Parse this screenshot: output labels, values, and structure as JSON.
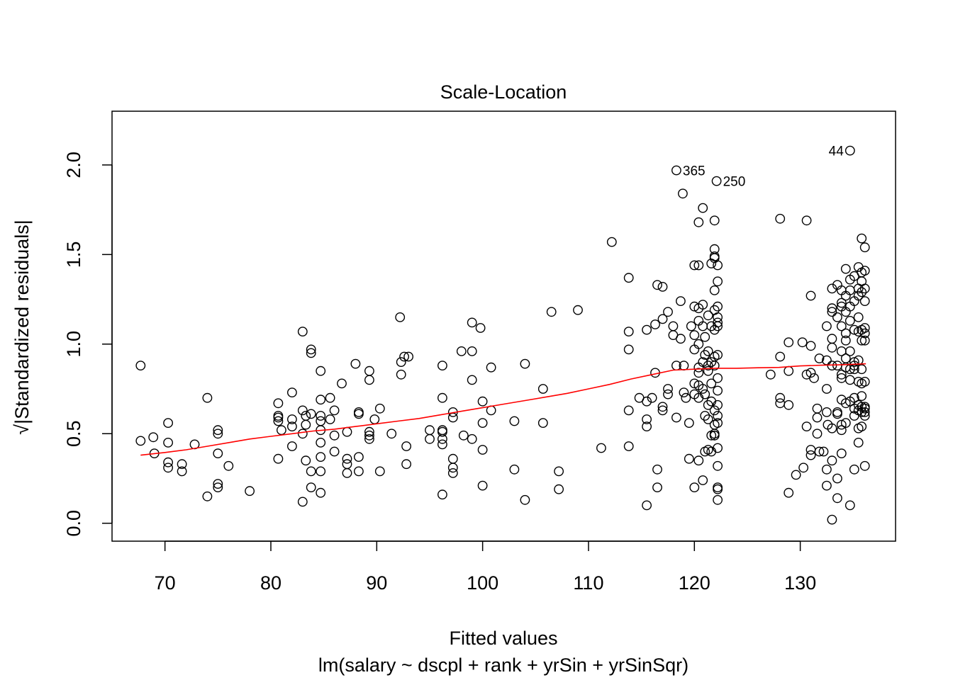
{
  "chart_data": {
    "type": "scatter",
    "title": "Scale-Location",
    "xlabel": "Fitted values",
    "subtitle": "lm(salary ~ dscpl + rank + yrSin + yrSinSqr)",
    "ylabel": "√|Standardized residuals|",
    "xlim": [
      65,
      139
    ],
    "ylim": [
      -0.1,
      2.3
    ],
    "xticks": [
      70,
      80,
      90,
      100,
      110,
      120,
      130
    ],
    "yticks": [
      0.0,
      0.5,
      1.0,
      1.5,
      2.0
    ],
    "ytick_labels": [
      "0.0",
      "0.5",
      "1.0",
      "1.5",
      "2.0"
    ],
    "grid": false,
    "point_color": "#000000",
    "smooth_color": "#ff0000",
    "points": [
      [
        67.7,
        0.88
      ],
      [
        67.7,
        0.46
      ],
      [
        68.9,
        0.48
      ],
      [
        69.0,
        0.39
      ],
      [
        70.3,
        0.56
      ],
      [
        70.3,
        0.45
      ],
      [
        70.3,
        0.34
      ],
      [
        70.3,
        0.31
      ],
      [
        71.6,
        0.33
      ],
      [
        71.6,
        0.29
      ],
      [
        72.8,
        0.44
      ],
      [
        74.0,
        0.7
      ],
      [
        74.0,
        0.15
      ],
      [
        75.0,
        0.52
      ],
      [
        75.0,
        0.5
      ],
      [
        75.0,
        0.39
      ],
      [
        75.0,
        0.22
      ],
      [
        75.0,
        0.2
      ],
      [
        76.0,
        0.32
      ],
      [
        78.0,
        0.18
      ],
      [
        80.7,
        0.67
      ],
      [
        80.7,
        0.6
      ],
      [
        80.7,
        0.59
      ],
      [
        80.7,
        0.57
      ],
      [
        80.7,
        0.36
      ],
      [
        81.0,
        0.52
      ],
      [
        82.0,
        0.73
      ],
      [
        82.0,
        0.58
      ],
      [
        82.0,
        0.54
      ],
      [
        82.0,
        0.43
      ],
      [
        83.0,
        1.07
      ],
      [
        83.0,
        0.63
      ],
      [
        83.0,
        0.5
      ],
      [
        83.0,
        0.12
      ],
      [
        83.3,
        0.6
      ],
      [
        83.3,
        0.35
      ],
      [
        83.3,
        0.55
      ],
      [
        83.8,
        0.97
      ],
      [
        83.8,
        0.95
      ],
      [
        83.8,
        0.61
      ],
      [
        83.8,
        0.29
      ],
      [
        83.8,
        0.2
      ],
      [
        84.7,
        0.85
      ],
      [
        84.7,
        0.69
      ],
      [
        84.7,
        0.6
      ],
      [
        84.7,
        0.57
      ],
      [
        84.7,
        0.52
      ],
      [
        84.7,
        0.45
      ],
      [
        84.7,
        0.37
      ],
      [
        84.7,
        0.29
      ],
      [
        84.7,
        0.17
      ],
      [
        85.6,
        0.7
      ],
      [
        85.6,
        0.58
      ],
      [
        86.0,
        0.63
      ],
      [
        86.0,
        0.49
      ],
      [
        86.0,
        0.4
      ],
      [
        86.7,
        0.78
      ],
      [
        87.2,
        0.51
      ],
      [
        87.2,
        0.36
      ],
      [
        87.2,
        0.33
      ],
      [
        87.2,
        0.28
      ],
      [
        88.0,
        0.89
      ],
      [
        88.3,
        0.61
      ],
      [
        88.3,
        0.62
      ],
      [
        88.3,
        0.37
      ],
      [
        88.3,
        0.29
      ],
      [
        89.3,
        0.85
      ],
      [
        89.3,
        0.8
      ],
      [
        89.3,
        0.51
      ],
      [
        89.3,
        0.49
      ],
      [
        89.3,
        0.47
      ],
      [
        89.8,
        0.58
      ],
      [
        90.3,
        0.64
      ],
      [
        90.3,
        0.29
      ],
      [
        91.4,
        0.5
      ],
      [
        92.2,
        1.15
      ],
      [
        92.3,
        0.9
      ],
      [
        92.3,
        0.83
      ],
      [
        92.6,
        0.93
      ],
      [
        92.8,
        0.43
      ],
      [
        92.8,
        0.33
      ],
      [
        93.0,
        0.93
      ],
      [
        95.0,
        0.52
      ],
      [
        95.0,
        0.47
      ],
      [
        96.2,
        0.88
      ],
      [
        96.2,
        0.7
      ],
      [
        96.2,
        0.52
      ],
      [
        96.2,
        0.51
      ],
      [
        96.2,
        0.47
      ],
      [
        96.2,
        0.44
      ],
      [
        96.2,
        0.16
      ],
      [
        97.2,
        0.62
      ],
      [
        97.2,
        0.59
      ],
      [
        97.2,
        0.36
      ],
      [
        97.2,
        0.31
      ],
      [
        97.2,
        0.28
      ],
      [
        98.0,
        0.96
      ],
      [
        98.2,
        0.49
      ],
      [
        99.0,
        1.12
      ],
      [
        99.0,
        0.96
      ],
      [
        99.0,
        0.8
      ],
      [
        99.0,
        0.47
      ],
      [
        99.8,
        1.09
      ],
      [
        100.0,
        0.68
      ],
      [
        100.0,
        0.56
      ],
      [
        100.0,
        0.41
      ],
      [
        100.0,
        0.21
      ],
      [
        100.8,
        0.87
      ],
      [
        100.8,
        0.63
      ],
      [
        103.0,
        0.57
      ],
      [
        103.0,
        0.3
      ],
      [
        104.0,
        0.89
      ],
      [
        104.0,
        0.13
      ],
      [
        105.7,
        0.75
      ],
      [
        105.7,
        0.56
      ],
      [
        106.5,
        1.18
      ],
      [
        107.2,
        0.29
      ],
      [
        107.2,
        0.19
      ],
      [
        109.0,
        1.19
      ],
      [
        111.2,
        0.42
      ],
      [
        112.2,
        1.57
      ],
      [
        113.8,
        1.37
      ],
      [
        113.8,
        1.07
      ],
      [
        113.8,
        0.97
      ],
      [
        113.8,
        0.63
      ],
      [
        113.8,
        0.43
      ],
      [
        114.8,
        0.7
      ],
      [
        115.5,
        1.08
      ],
      [
        115.5,
        0.68
      ],
      [
        115.5,
        0.58
      ],
      [
        115.5,
        0.54
      ],
      [
        115.5,
        0.1
      ],
      [
        116.0,
        0.7
      ],
      [
        116.3,
        1.11
      ],
      [
        116.3,
        0.84
      ],
      [
        116.5,
        0.3
      ],
      [
        116.5,
        0.2
      ],
      [
        116.5,
        1.33
      ],
      [
        117.0,
        1.32
      ],
      [
        117.0,
        1.14
      ],
      [
        117.0,
        0.65
      ],
      [
        117.0,
        0.63
      ],
      [
        117.5,
        1.18
      ],
      [
        117.5,
        0.75
      ],
      [
        117.5,
        0.72
      ],
      [
        118.0,
        1.1
      ],
      [
        118.0,
        1.05
      ],
      [
        118.3,
        0.88
      ],
      [
        118.3,
        0.59
      ],
      [
        118.3,
        1.97
      ],
      [
        118.7,
        1.24
      ],
      [
        118.7,
        1.03
      ],
      [
        118.9,
        1.84
      ],
      [
        119.0,
        0.88
      ],
      [
        119.0,
        0.73
      ],
      [
        119.2,
        0.7
      ],
      [
        119.5,
        0.56
      ],
      [
        119.5,
        0.36
      ],
      [
        119.7,
        1.1
      ],
      [
        120.0,
        1.21
      ],
      [
        120.0,
        1.05
      ],
      [
        120.0,
        0.97
      ],
      [
        120.0,
        0.78
      ],
      [
        120.0,
        0.72
      ],
      [
        120.0,
        0.2
      ],
      [
        120.0,
        1.44
      ],
      [
        120.4,
        1.68
      ],
      [
        120.4,
        1.44
      ],
      [
        120.4,
        1.2
      ],
      [
        120.4,
        1.13
      ],
      [
        120.4,
        1.0
      ],
      [
        120.4,
        0.87
      ],
      [
        120.4,
        0.84
      ],
      [
        120.4,
        0.77
      ],
      [
        120.4,
        0.7
      ],
      [
        120.4,
        0.35
      ],
      [
        120.8,
        1.76
      ],
      [
        120.8,
        1.22
      ],
      [
        120.8,
        1.1
      ],
      [
        120.8,
        0.9
      ],
      [
        120.8,
        0.75
      ],
      [
        120.8,
        0.24
      ],
      [
        121.0,
        1.04
      ],
      [
        121.0,
        0.94
      ],
      [
        121.0,
        0.72
      ],
      [
        121.0,
        0.6
      ],
      [
        121.0,
        0.4
      ],
      [
        121.3,
        1.16
      ],
      [
        121.3,
        0.96
      ],
      [
        121.3,
        0.88
      ],
      [
        121.3,
        0.85
      ],
      [
        121.3,
        0.66
      ],
      [
        121.3,
        0.58
      ],
      [
        121.3,
        0.41
      ],
      [
        121.6,
        1.45
      ],
      [
        121.6,
        1.1
      ],
      [
        121.6,
        0.9
      ],
      [
        121.6,
        0.78
      ],
      [
        121.6,
        0.68
      ],
      [
        121.6,
        0.49
      ],
      [
        121.6,
        0.4
      ],
      [
        121.9,
        1.53
      ],
      [
        121.9,
        1.49
      ],
      [
        121.9,
        1.48
      ],
      [
        121.9,
        1.3
      ],
      [
        121.9,
        1.19
      ],
      [
        121.9,
        1.08
      ],
      [
        121.9,
        0.93
      ],
      [
        121.9,
        0.88
      ],
      [
        121.9,
        0.63
      ],
      [
        121.9,
        0.55
      ],
      [
        121.9,
        0.5
      ],
      [
        121.9,
        0.49
      ],
      [
        121.9,
        0.49
      ],
      [
        121.9,
        1.69
      ],
      [
        122.1,
        1.91
      ],
      [
        122.2,
        1.44
      ],
      [
        122.2,
        1.35
      ],
      [
        122.2,
        1.21
      ],
      [
        122.2,
        1.15
      ],
      [
        122.2,
        1.12
      ],
      [
        122.2,
        1.1
      ],
      [
        122.2,
        0.94
      ],
      [
        122.2,
        0.81
      ],
      [
        122.2,
        0.74
      ],
      [
        122.2,
        0.66
      ],
      [
        122.2,
        0.6
      ],
      [
        122.2,
        0.56
      ],
      [
        122.2,
        0.42
      ],
      [
        122.2,
        0.32
      ],
      [
        122.2,
        0.2
      ],
      [
        122.2,
        0.19
      ],
      [
        122.2,
        0.13
      ],
      [
        127.2,
        0.83
      ],
      [
        128.1,
        1.7
      ],
      [
        128.1,
        0.93
      ],
      [
        128.1,
        0.7
      ],
      [
        128.1,
        0.67
      ],
      [
        128.9,
        1.01
      ],
      [
        128.9,
        0.85
      ],
      [
        128.9,
        0.66
      ],
      [
        128.9,
        0.17
      ],
      [
        129.6,
        0.27
      ],
      [
        130.2,
        1.01
      ],
      [
        130.3,
        0.31
      ],
      [
        130.6,
        1.69
      ],
      [
        130.6,
        0.83
      ],
      [
        130.6,
        0.54
      ],
      [
        131.0,
        1.27
      ],
      [
        131.0,
        0.99
      ],
      [
        131.0,
        0.84
      ],
      [
        131.0,
        0.41
      ],
      [
        131.0,
        0.38
      ],
      [
        131.3,
        0.81
      ],
      [
        131.6,
        0.64
      ],
      [
        131.6,
        0.59
      ],
      [
        131.6,
        0.5
      ],
      [
        131.8,
        0.92
      ],
      [
        131.8,
        0.4
      ],
      [
        132.2,
        0.4
      ],
      [
        132.5,
        1.1
      ],
      [
        132.5,
        0.91
      ],
      [
        132.5,
        0.75
      ],
      [
        132.5,
        0.62
      ],
      [
        132.5,
        0.3
      ],
      [
        132.5,
        0.21
      ],
      [
        132.6,
        0.55
      ],
      [
        133.0,
        1.31
      ],
      [
        133.0,
        1.2
      ],
      [
        133.0,
        1.18
      ],
      [
        133.0,
        1.03
      ],
      [
        133.0,
        0.98
      ],
      [
        133.0,
        0.88
      ],
      [
        133.0,
        0.53
      ],
      [
        133.0,
        0.35
      ],
      [
        133.0,
        0.02
      ],
      [
        133.5,
        1.33
      ],
      [
        133.5,
        1.15
      ],
      [
        133.5,
        0.88
      ],
      [
        133.5,
        0.62
      ],
      [
        133.5,
        0.61
      ],
      [
        133.5,
        0.25
      ],
      [
        133.5,
        0.14
      ],
      [
        133.9,
        1.3
      ],
      [
        133.9,
        1.23
      ],
      [
        133.9,
        1.21
      ],
      [
        133.9,
        1.1
      ],
      [
        133.9,
        0.96
      ],
      [
        133.9,
        0.83
      ],
      [
        133.9,
        0.81
      ],
      [
        133.9,
        0.69
      ],
      [
        133.9,
        0.55
      ],
      [
        133.9,
        0.52
      ],
      [
        133.9,
        0.39
      ],
      [
        134.3,
        1.42
      ],
      [
        134.3,
        1.27
      ],
      [
        134.3,
        1.18
      ],
      [
        134.3,
        1.06
      ],
      [
        134.3,
        1.02
      ],
      [
        134.3,
        0.92
      ],
      [
        134.3,
        0.87
      ],
      [
        134.3,
        0.67
      ],
      [
        134.3,
        0.56
      ],
      [
        134.7,
        1.36
      ],
      [
        134.7,
        1.3
      ],
      [
        134.7,
        1.21
      ],
      [
        134.7,
        1.13
      ],
      [
        134.7,
        0.96
      ],
      [
        134.7,
        0.86
      ],
      [
        134.7,
        0.8
      ],
      [
        134.7,
        0.68
      ],
      [
        134.7,
        0.1
      ],
      [
        134.7,
        2.08
      ],
      [
        135.1,
        1.38
      ],
      [
        135.1,
        1.24
      ],
      [
        135.1,
        1.08
      ],
      [
        135.1,
        0.9
      ],
      [
        135.1,
        0.88
      ],
      [
        135.1,
        0.86
      ],
      [
        135.1,
        0.7
      ],
      [
        135.1,
        0.64
      ],
      [
        135.1,
        0.6
      ],
      [
        135.1,
        0.3
      ],
      [
        135.5,
        1.43
      ],
      [
        135.5,
        1.31
      ],
      [
        135.5,
        1.27
      ],
      [
        135.5,
        1.15
      ],
      [
        135.5,
        1.07
      ],
      [
        135.5,
        0.91
      ],
      [
        135.5,
        0.79
      ],
      [
        135.5,
        0.66
      ],
      [
        135.5,
        0.63
      ],
      [
        135.5,
        0.53
      ],
      [
        135.5,
        0.45
      ],
      [
        135.8,
        1.59
      ],
      [
        135.8,
        1.4
      ],
      [
        135.8,
        1.35
      ],
      [
        135.8,
        1.29
      ],
      [
        135.8,
        1.08
      ],
      [
        135.8,
        1.02
      ],
      [
        135.8,
        0.86
      ],
      [
        135.8,
        0.78
      ],
      [
        135.8,
        0.71
      ],
      [
        135.8,
        0.65
      ],
      [
        135.8,
        0.62
      ],
      [
        135.8,
        0.54
      ],
      [
        136.1,
        1.54
      ],
      [
        136.1,
        1.41
      ],
      [
        136.1,
        1.31
      ],
      [
        136.1,
        1.24
      ],
      [
        136.1,
        1.09
      ],
      [
        136.1,
        1.06
      ],
      [
        136.1,
        1.02
      ],
      [
        136.1,
        0.79
      ],
      [
        136.1,
        0.65
      ],
      [
        136.1,
        0.64
      ],
      [
        136.1,
        0.62
      ],
      [
        136.1,
        0.6
      ],
      [
        136.1,
        0.32
      ]
    ],
    "smooth_line": [
      [
        67.7,
        0.38
      ],
      [
        70,
        0.395
      ],
      [
        72,
        0.41
      ],
      [
        74,
        0.43
      ],
      [
        76,
        0.45
      ],
      [
        78,
        0.47
      ],
      [
        80,
        0.485
      ],
      [
        82,
        0.5
      ],
      [
        84,
        0.515
      ],
      [
        86,
        0.525
      ],
      [
        88,
        0.54
      ],
      [
        90,
        0.555
      ],
      [
        92,
        0.57
      ],
      [
        94,
        0.585
      ],
      [
        96,
        0.605
      ],
      [
        98,
        0.625
      ],
      [
        100,
        0.645
      ],
      [
        102,
        0.665
      ],
      [
        104,
        0.685
      ],
      [
        106,
        0.705
      ],
      [
        108,
        0.725
      ],
      [
        110,
        0.75
      ],
      [
        112,
        0.775
      ],
      [
        114,
        0.805
      ],
      [
        116,
        0.83
      ],
      [
        118,
        0.855
      ],
      [
        120,
        0.86
      ],
      [
        122,
        0.865
      ],
      [
        124,
        0.865
      ],
      [
        126,
        0.868
      ],
      [
        128,
        0.87
      ],
      [
        130,
        0.878
      ],
      [
        132,
        0.882
      ],
      [
        134,
        0.885
      ],
      [
        136.2,
        0.89
      ]
    ],
    "annotations": [
      {
        "text": "365",
        "x": 118.3,
        "y": 1.97,
        "anchor": "start"
      },
      {
        "text": "250",
        "x": 122.1,
        "y": 1.91,
        "anchor": "start"
      },
      {
        "text": "44",
        "x": 134.7,
        "y": 2.08,
        "anchor": "end"
      }
    ]
  }
}
